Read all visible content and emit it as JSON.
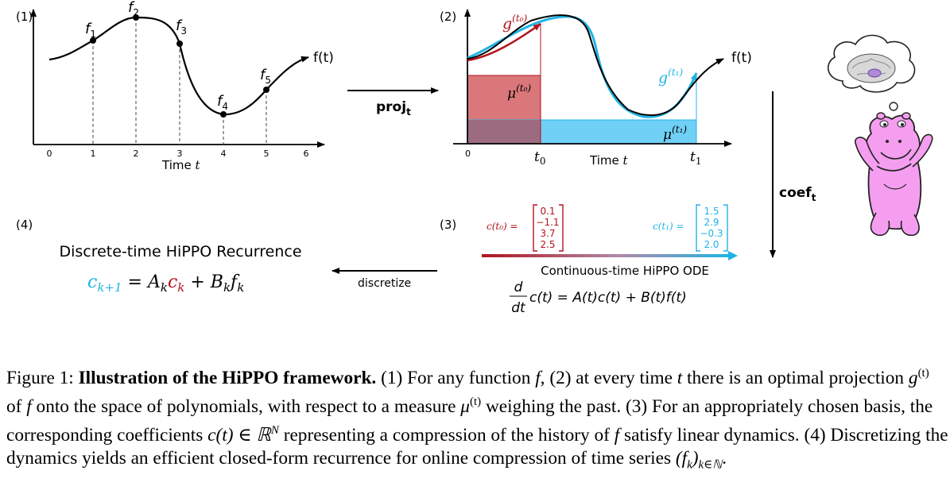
{
  "panel1": {
    "label": "(1)",
    "points": [
      "f",
      "f",
      "f",
      "f",
      "f"
    ],
    "point_subs": [
      "1",
      "2",
      "3",
      "4",
      "5"
    ],
    "curve_label": "f(t)",
    "ticks": [
      "0",
      "1",
      "2",
      "3",
      "4",
      "5",
      "6"
    ],
    "xlabel": "Time",
    "xlabel_var": "t"
  },
  "arrow_proj": {
    "label": "proj",
    "sub": "t"
  },
  "panel2": {
    "label": "(2)",
    "g0": "g",
    "g0_sup": "(t₀)",
    "g1": "g",
    "g1_sup": "(t₁)",
    "mu0": "μ",
    "mu0_sup": "(t₀)",
    "mu1": "μ",
    "mu1_sup": "(t₁)",
    "curve_label": "f(t)",
    "tick0": "0",
    "t0": "t",
    "t0_sub": "0",
    "t1": "t",
    "t1_sub": "1",
    "xlabel": "Time",
    "xlabel_var": "t"
  },
  "arrow_coef": {
    "label": "coef",
    "sub": "t"
  },
  "panel3": {
    "label": "(3)",
    "c0_label": "c(t₀) =",
    "c0_values": [
      "0.1",
      "−1.1",
      "3.7",
      "2.5"
    ],
    "c1_label": "c(t₁) =",
    "c1_values": [
      "1.5",
      "2.9",
      "−0.3",
      "2.0"
    ],
    "title": "Continuous-time HiPPO ODE",
    "eq_d": "d",
    "eq_dt": "dt",
    "eq_rhs": "c(t) = A(t)c(t) + B(t)f(t)"
  },
  "arrow_disc": {
    "label": "discretize"
  },
  "panel4": {
    "label": "(4)",
    "title": "Discrete-time HiPPO Recurrence",
    "eq_lhs": "c",
    "eq_lhs_sub": "k+1",
    "eq_eq": " = ",
    "eq_A": "A",
    "eq_A_sub": "k",
    "eq_c": "c",
    "eq_c_sub": "k",
    "eq_plus": " + ",
    "eq_B": "B",
    "eq_B_sub": "k",
    "eq_f": "f",
    "eq_f_sub": "k"
  },
  "colors": {
    "red": "#b0151e",
    "blue": "#20b4e6",
    "red_fill": "#d9777a",
    "blue_fill": "#6fcff5",
    "overlap_fill": "#9c6b7f",
    "hippo_pink": "#f59ef0"
  },
  "caption": {
    "fig": "Figure 1:",
    "title": "Illustration of the HiPPO framework.",
    "s1": " (1) For any function ",
    "v_f1": "f",
    "s2": ", (2) at every time ",
    "v_t": "t",
    "s3": " there is an optimal projection ",
    "v_g": "g",
    "v_g_sup": "(t)",
    "s4": " of ",
    "v_f2": "f",
    "s5": " onto the space of polynomials, with respect to a measure ",
    "v_mu": "μ",
    "v_mu_sup": "(t)",
    "s6": " weighing the past. (3) For an appropriately chosen basis, the corresponding coefficients ",
    "v_ct": "c(t) ∈ ℝ",
    "v_ct_sup": "N",
    "s7": " representing a compression of the history of ",
    "v_f3": "f",
    "s8": " satisfy linear dynamics. (4) Discretizing the dynamics yields an efficient closed-form recurrence for online compression of time series ",
    "v_fk": "(f",
    "v_fk_sub": "k",
    "v_fk_end": ")",
    "v_fk_sub2": "k∈ℕ",
    "s9": "."
  }
}
